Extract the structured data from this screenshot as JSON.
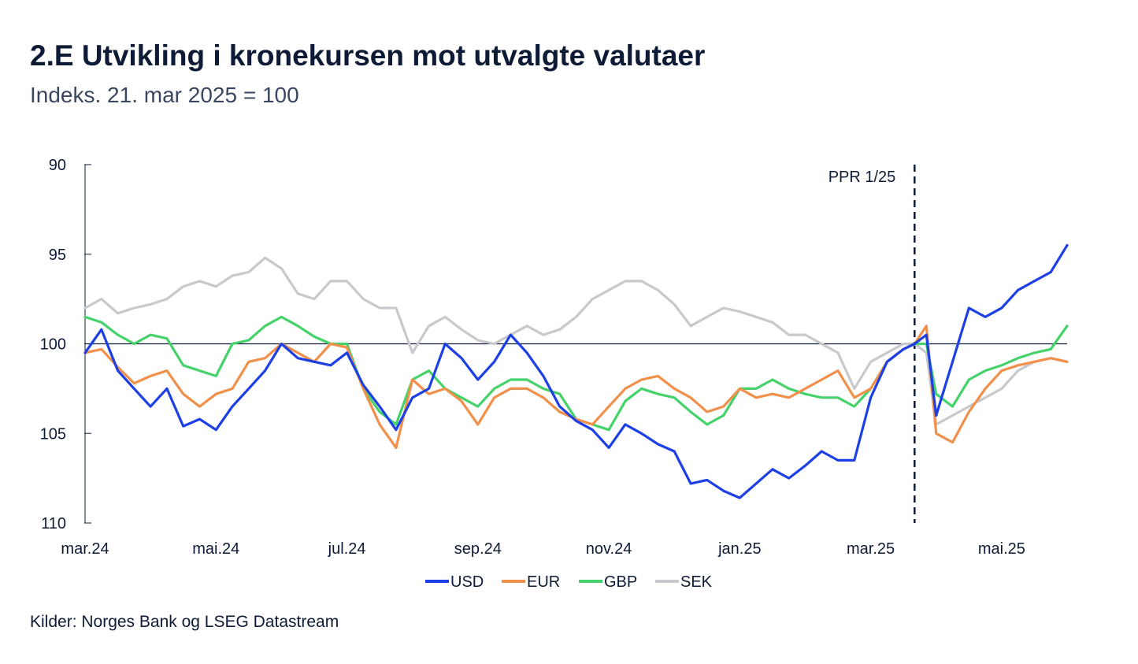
{
  "title": "2.E Utvikling i kronekursen mot utvalgte valutaer",
  "subtitle": "Indeks. 21. mar 2025 = 100",
  "source": "Kilder: Norges Bank og LSEG Datastream",
  "chart_data": {
    "type": "line",
    "title": "2.E Utvikling i kronekursen mot utvalgte valutaer",
    "ylabel": "Indeks. 21. mar 2025 = 100",
    "y_inverted": true,
    "ylim": [
      90,
      110
    ],
    "yticks": [
      90,
      95,
      100,
      105,
      110
    ],
    "xlim": [
      0,
      15.0
    ],
    "x_unit": "months since 1 Mar 2024",
    "xticks": [
      {
        "x": 0,
        "label": "mar.24"
      },
      {
        "x": 2,
        "label": "mai.24"
      },
      {
        "x": 4,
        "label": "jul.24"
      },
      {
        "x": 6,
        "label": "sep.24"
      },
      {
        "x": 8,
        "label": "nov.24"
      },
      {
        "x": 10,
        "label": "jan.25"
      },
      {
        "x": 12,
        "label": "mar.25"
      },
      {
        "x": 14,
        "label": "mai.25"
      }
    ],
    "reference_line": {
      "y": 100
    },
    "annotation": {
      "x": 12.67,
      "label": "PPR 1/25"
    },
    "x": [
      0,
      0.25,
      0.5,
      0.75,
      1.0,
      1.25,
      1.5,
      1.75,
      2.0,
      2.25,
      2.5,
      2.75,
      3.0,
      3.25,
      3.5,
      3.75,
      4.0,
      4.25,
      4.5,
      4.75,
      5.0,
      5.25,
      5.5,
      5.75,
      6.0,
      6.25,
      6.5,
      6.75,
      7.0,
      7.25,
      7.5,
      7.75,
      8.0,
      8.25,
      8.5,
      8.75,
      9.0,
      9.25,
      9.5,
      9.75,
      10.0,
      10.25,
      10.5,
      10.75,
      11.0,
      11.25,
      11.5,
      11.75,
      12.0,
      12.25,
      12.5,
      12.67,
      12.85,
      13.0,
      13.25,
      13.5,
      13.75,
      14.0,
      14.25,
      14.5,
      14.75,
      15.0
    ],
    "series": [
      {
        "name": "USD",
        "color": "#1d3fe6",
        "values": [
          100.5,
          99.2,
          101.5,
          102.5,
          103.5,
          102.5,
          104.6,
          104.2,
          104.8,
          103.5,
          102.5,
          101.5,
          100.0,
          100.8,
          101.0,
          101.2,
          100.5,
          102.3,
          103.5,
          104.8,
          103.0,
          102.5,
          100.0,
          100.8,
          102.0,
          101.0,
          99.5,
          100.5,
          101.8,
          103.5,
          104.3,
          104.8,
          105.8,
          104.5,
          105.0,
          105.6,
          106.0,
          107.8,
          107.6,
          108.2,
          108.6,
          107.8,
          107.0,
          107.5,
          106.8,
          106.0,
          106.5,
          106.5,
          103.0,
          101.0,
          100.3,
          100.0,
          99.5,
          104.0,
          101.0,
          98.0,
          98.5,
          98.0,
          97.0,
          96.5,
          96.0,
          94.5
        ]
      },
      {
        "name": "EUR",
        "color": "#f0904a",
        "values": [
          100.5,
          100.3,
          101.3,
          102.2,
          101.8,
          101.5,
          102.8,
          103.5,
          102.8,
          102.5,
          101.0,
          100.8,
          100.0,
          100.5,
          101.0,
          100.0,
          100.2,
          102.5,
          104.5,
          105.8,
          102.0,
          102.8,
          102.5,
          103.2,
          104.5,
          103.0,
          102.5,
          102.5,
          103.0,
          103.8,
          104.2,
          104.5,
          103.5,
          102.5,
          102.0,
          101.8,
          102.5,
          103.0,
          103.8,
          103.5,
          102.5,
          103.0,
          102.8,
          103.0,
          102.5,
          102.0,
          101.5,
          103.0,
          102.5,
          101.0,
          100.3,
          100.0,
          99.0,
          105.0,
          105.5,
          103.8,
          102.5,
          101.5,
          101.2,
          101.0,
          100.8,
          101.0
        ]
      },
      {
        "name": "GBP",
        "color": "#45d26a",
        "values": [
          98.5,
          98.8,
          99.5,
          100.0,
          99.5,
          99.7,
          101.2,
          101.5,
          101.8,
          100.0,
          99.8,
          99.0,
          98.5,
          99.0,
          99.6,
          100.0,
          100.0,
          102.5,
          103.8,
          104.5,
          102.0,
          101.5,
          102.5,
          103.0,
          103.5,
          102.5,
          102.0,
          102.0,
          102.5,
          102.8,
          104.2,
          104.5,
          104.8,
          103.2,
          102.5,
          102.8,
          103.0,
          103.8,
          104.5,
          104.0,
          102.5,
          102.5,
          102.0,
          102.5,
          102.8,
          103.0,
          103.0,
          103.5,
          102.5,
          101.0,
          100.3,
          100.0,
          100.0,
          102.8,
          103.5,
          102.0,
          101.5,
          101.2,
          100.8,
          100.5,
          100.3,
          99.0
        ]
      },
      {
        "name": "SEK",
        "color": "#c8c9cc",
        "values": [
          98.0,
          97.5,
          98.3,
          98.0,
          97.8,
          97.5,
          96.8,
          96.5,
          96.8,
          96.2,
          96.0,
          95.2,
          95.8,
          97.2,
          97.5,
          96.5,
          96.5,
          97.5,
          98.0,
          98.0,
          100.5,
          99.0,
          98.5,
          99.2,
          99.8,
          100.0,
          99.5,
          99.0,
          99.5,
          99.2,
          98.5,
          97.5,
          97.0,
          96.5,
          96.5,
          97.0,
          97.8,
          99.0,
          98.5,
          98.0,
          98.2,
          98.5,
          98.8,
          99.5,
          99.5,
          100.0,
          100.5,
          102.5,
          101.0,
          100.5,
          100.0,
          100.0,
          100.5,
          104.5,
          104.0,
          103.5,
          103.0,
          102.5,
          101.5,
          101.0,
          100.8,
          101.0
        ]
      }
    ]
  }
}
